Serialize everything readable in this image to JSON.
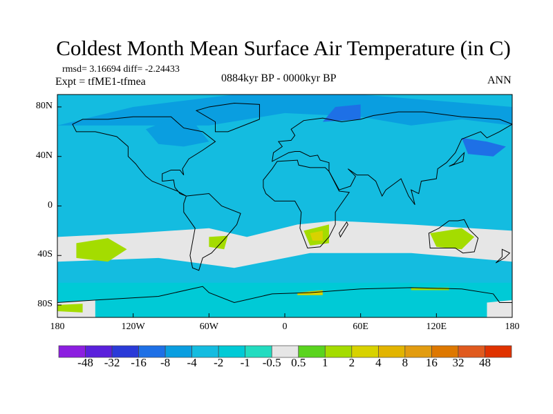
{
  "title": "Coldest Month Mean Surface Air Temperature (in C)",
  "stats": "rmsd= 3.16694 diff= -2.24433",
  "experiment": "Expt = tfME1-tfmea",
  "period": "0884kyr BP - 0000kyr BP",
  "season": "ANN",
  "chart_data": {
    "type": "heatmap",
    "title": "Coldest Month Mean Surface Air Temperature (in C)",
    "xlabel": "",
    "ylabel": "",
    "xlim": [
      -180,
      180
    ],
    "ylim": [
      -90,
      90
    ],
    "x_ticks": [
      "180",
      "120W",
      "60W",
      "0",
      "60E",
      "120E",
      "180"
    ],
    "y_ticks": [
      "80N",
      "40N",
      "0",
      "40S",
      "80S"
    ],
    "colorbar": {
      "labels": [
        "-48",
        "-32",
        "-16",
        "-8",
        "-4",
        "-2",
        "-1",
        "-0.5",
        "0.5",
        "1",
        "2",
        "4",
        "8",
        "16",
        "32",
        "48"
      ],
      "colors": [
        "#8c1ee0",
        "#5a20dc",
        "#2a3ad8",
        "#1e70e6",
        "#0a9ee0",
        "#14bce0",
        "#00cad6",
        "#22dcc0",
        "#e6e6e6",
        "#5ad41e",
        "#a4dc00",
        "#d8d200",
        "#e2b400",
        "#e29c10",
        "#de7800",
        "#e05a1e",
        "#e03200"
      ]
    },
    "dominant_value_range": "-4 to -1",
    "notes": "Southern subtropics near zero / slightly positive; Arctic and Siberia -8 to -16"
  }
}
